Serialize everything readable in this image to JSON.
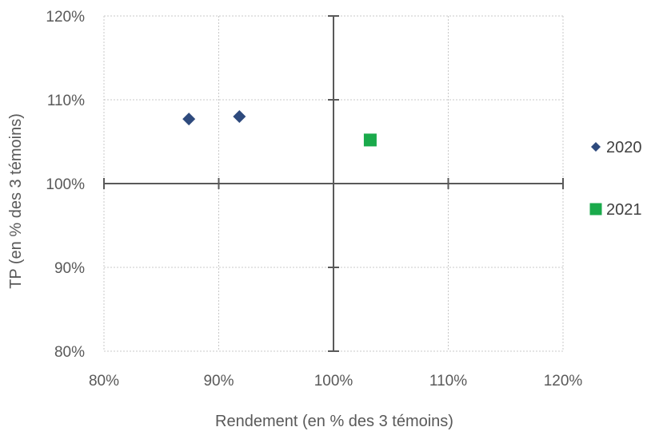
{
  "chart_data": {
    "type": "scatter",
    "xlabel": "Rendement (en % des 3 témoins)",
    "ylabel": "TP (en % des 3 témoins)",
    "xlim": [
      80,
      120
    ],
    "ylim": [
      80,
      120
    ],
    "x_ticks": [
      "80%",
      "90%",
      "100%",
      "110%",
      "120%"
    ],
    "y_ticks": [
      "80%",
      "90%",
      "100%",
      "110%",
      "120%"
    ],
    "x_tick_values": [
      80,
      90,
      100,
      110,
      120
    ],
    "y_tick_values": [
      80,
      90,
      100,
      110,
      120
    ],
    "grid": true,
    "crosshair_at": [
      100,
      100
    ],
    "legend_position": "right",
    "series": [
      {
        "name": "2020",
        "marker": "diamond",
        "color": "#2E4A7D",
        "points": [
          {
            "x": 87.4,
            "y": 107.7
          },
          {
            "x": 91.8,
            "y": 108.0
          }
        ]
      },
      {
        "name": "2021",
        "marker": "square",
        "color": "#1AAA4B",
        "points": [
          {
            "x": 103.2,
            "y": 105.2
          }
        ]
      }
    ]
  }
}
